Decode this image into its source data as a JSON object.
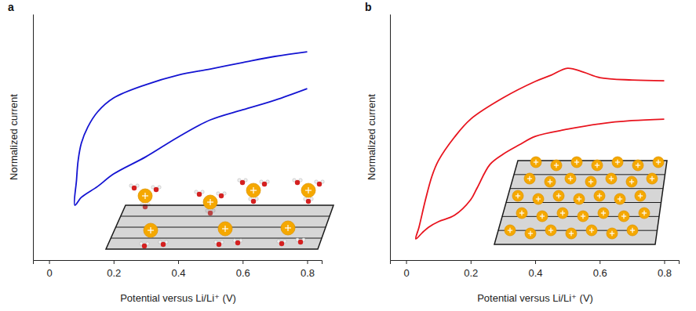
{
  "chart_data": [
    {
      "type": "line",
      "title": "a",
      "x_label": "Potential versus Li/Li⁺ (V)",
      "y_label": "Normalized current",
      "xlim": [
        -0.05,
        0.845
      ],
      "xticks": [
        0,
        0.2,
        0.4,
        0.6,
        0.8
      ],
      "ylim": [
        0,
        1
      ],
      "yticks": [],
      "tick_labels": "x",
      "series": [
        {
          "color": "#1414d2",
          "x": [
            0.8,
            0.7,
            0.6,
            0.5,
            0.4,
            0.3,
            0.2,
            0.15,
            0.1,
            0.08,
            0.085,
            0.09,
            0.1,
            0.12,
            0.15,
            0.2,
            0.3,
            0.4,
            0.5,
            0.6,
            0.7,
            0.8
          ],
          "values": [
            0.697,
            0.65,
            0.611,
            0.57,
            0.5,
            0.42,
            0.35,
            0.299,
            0.255,
            0.223,
            0.325,
            0.404,
            0.475,
            0.541,
            0.602,
            0.659,
            0.713,
            0.752,
            0.777,
            0.803,
            0.828,
            0.847
          ]
        }
      ]
    },
    {
      "type": "line",
      "title": "b",
      "x_label": "Potential versus Li/Li⁺ (V)",
      "y_label": "Normalized current",
      "xlim": [
        -0.05,
        0.845
      ],
      "xticks": [
        0,
        0.2,
        0.4,
        0.6,
        0.8
      ],
      "ylim": [
        0,
        1
      ],
      "yticks": [],
      "tick_labels": "x",
      "series": [
        {
          "color": "#e8141e",
          "x": [
            0.8,
            0.7,
            0.6,
            0.5,
            0.4,
            0.35,
            0.3,
            0.26,
            0.22,
            0.2,
            0.15,
            0.1,
            0.07,
            0.05,
            0.03,
            0.04,
            0.06,
            0.08,
            0.1,
            0.15,
            0.2,
            0.3,
            0.4,
            0.45,
            0.5,
            0.55,
            0.6,
            0.7,
            0.8
          ],
          "values": [
            0.573,
            0.567,
            0.554,
            0.532,
            0.503,
            0.468,
            0.43,
            0.389,
            0.293,
            0.245,
            0.182,
            0.156,
            0.134,
            0.111,
            0.086,
            0.134,
            0.245,
            0.341,
            0.404,
            0.5,
            0.573,
            0.659,
            0.726,
            0.752,
            0.78,
            0.764,
            0.742,
            0.732,
            0.729
          ]
        }
      ]
    }
  ]
}
